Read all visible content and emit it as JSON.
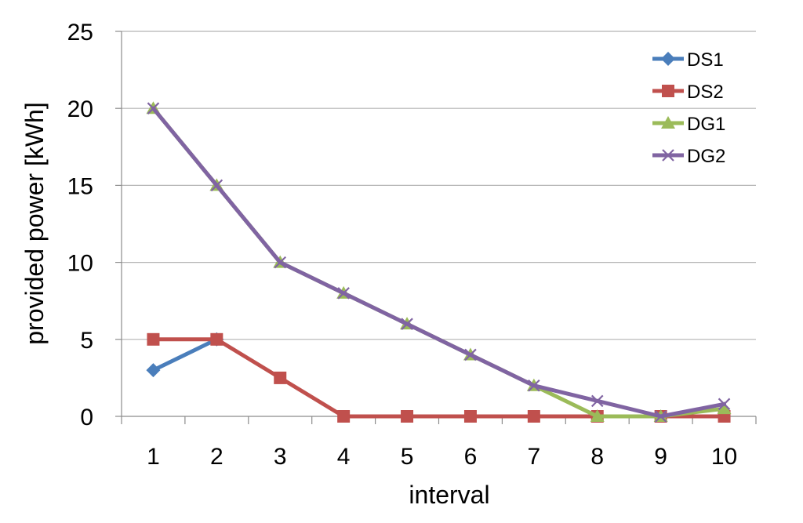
{
  "chart_data": {
    "type": "line",
    "xlabel": "interval",
    "ylabel": "provided power  [kWh]",
    "x": [
      1,
      2,
      3,
      4,
      5,
      6,
      7,
      8,
      9,
      10
    ],
    "x_tick_labels": [
      "1",
      "2",
      "3",
      "4",
      "5",
      "6",
      "7",
      "8",
      "9",
      "10"
    ],
    "ylim": [
      0,
      25
    ],
    "y_ticks": [
      0,
      5,
      10,
      15,
      20,
      25
    ],
    "y_tick_labels": [
      "0",
      "5",
      "10",
      "15",
      "20",
      "25"
    ],
    "grid": true,
    "legend_position": "top-right",
    "series": [
      {
        "name": "DS1",
        "color": "#4a7ebb",
        "marker": "diamond",
        "values": [
          3,
          5,
          null,
          null,
          null,
          null,
          null,
          null,
          null,
          null
        ]
      },
      {
        "name": "DS2",
        "color": "#c0504d",
        "marker": "square",
        "values": [
          5,
          5,
          2.5,
          0,
          0,
          0,
          0,
          0,
          0,
          0
        ]
      },
      {
        "name": "DG1",
        "color": "#9bbb59",
        "marker": "triangle",
        "values": [
          20,
          15,
          10,
          8,
          6,
          4,
          2,
          0,
          0,
          0.5
        ]
      },
      {
        "name": "DG2",
        "color": "#8064a2",
        "marker": "x",
        "values": [
          20,
          15,
          10,
          8,
          6,
          4,
          2,
          1,
          0,
          0.8
        ]
      }
    ]
  }
}
